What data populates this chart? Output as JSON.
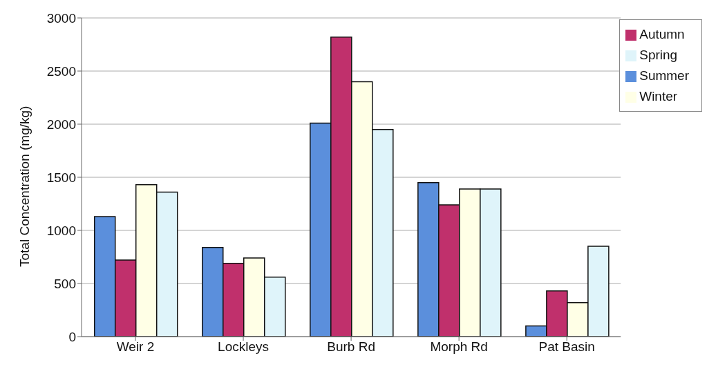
{
  "chart_data": {
    "type": "bar",
    "ylabel": "Total Concentration (mg/kg)",
    "categories": [
      "Weir 2",
      "Lockleys",
      "Burb Rd",
      "Morph Rd",
      "Pat Basin"
    ],
    "series": [
      {
        "name": "Summer",
        "color": "#5b8fdc",
        "values": [
          1130,
          840,
          2010,
          1450,
          100
        ]
      },
      {
        "name": "Autumn",
        "color": "#c0306c",
        "values": [
          720,
          690,
          2820,
          1240,
          430
        ]
      },
      {
        "name": "Winter",
        "color": "#ffffe6",
        "values": [
          1430,
          740,
          2400,
          1390,
          320
        ]
      },
      {
        "name": "Spring",
        "color": "#dff4fa",
        "values": [
          1360,
          560,
          1950,
          1390,
          850
        ]
      }
    ],
    "ylim": [
      0,
      3000
    ],
    "yticks": [
      0,
      500,
      1000,
      1500,
      2000,
      2500,
      3000
    ],
    "grid": "y",
    "legend": "top right"
  }
}
